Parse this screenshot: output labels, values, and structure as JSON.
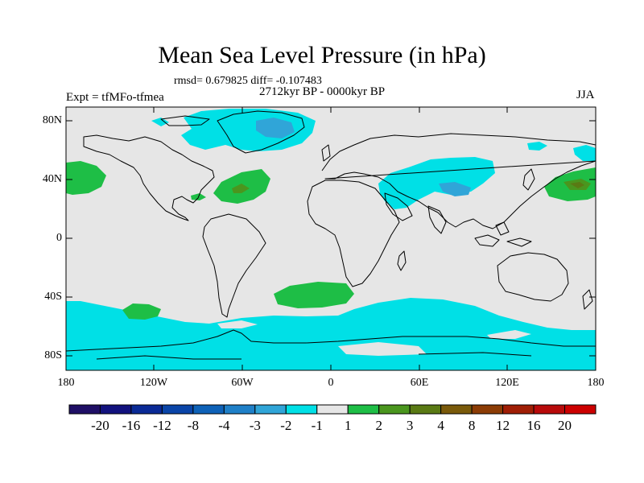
{
  "title": "Mean Sea Level Pressure (in hPa)",
  "stats": "rmsd= 0.679825 diff= -0.107483",
  "period": "2712kyr BP - 0000kyr BP",
  "experiment": "Expt = tfMFo-tfmea",
  "season": "JJA",
  "axes": {
    "y_labels": [
      "80N",
      "40N",
      "0",
      "40S",
      "80S"
    ],
    "x_labels": [
      "180",
      "120W",
      "60W",
      "0",
      "60E",
      "120E",
      "180"
    ]
  },
  "colorbar": {
    "labels": [
      "-20",
      "-16",
      "-12",
      "-8",
      "-4",
      "-3",
      "-2",
      "-1",
      "1",
      "2",
      "3",
      "4",
      "8",
      "12",
      "16",
      "20"
    ],
    "colors": [
      "#1f0f66",
      "#12127e",
      "#0a2a96",
      "#0a45a8",
      "#0e62b8",
      "#1f80c8",
      "#30a5d8",
      "#00e0e6",
      "#e6e6e6",
      "#1ebe46",
      "#4a961e",
      "#5a7a14",
      "#7a5a0a",
      "#8c3c05",
      "#a01e05",
      "#b80a0a",
      "#cc0000"
    ]
  },
  "colors": {
    "background": "#e6e6e6",
    "negative_1_2": "#00e0e6",
    "negative_2_3": "#30a5d8",
    "positive_1_2": "#1ebe46",
    "positive_2_3": "#4a961e",
    "positive_3_4": "#5a7a14"
  }
}
